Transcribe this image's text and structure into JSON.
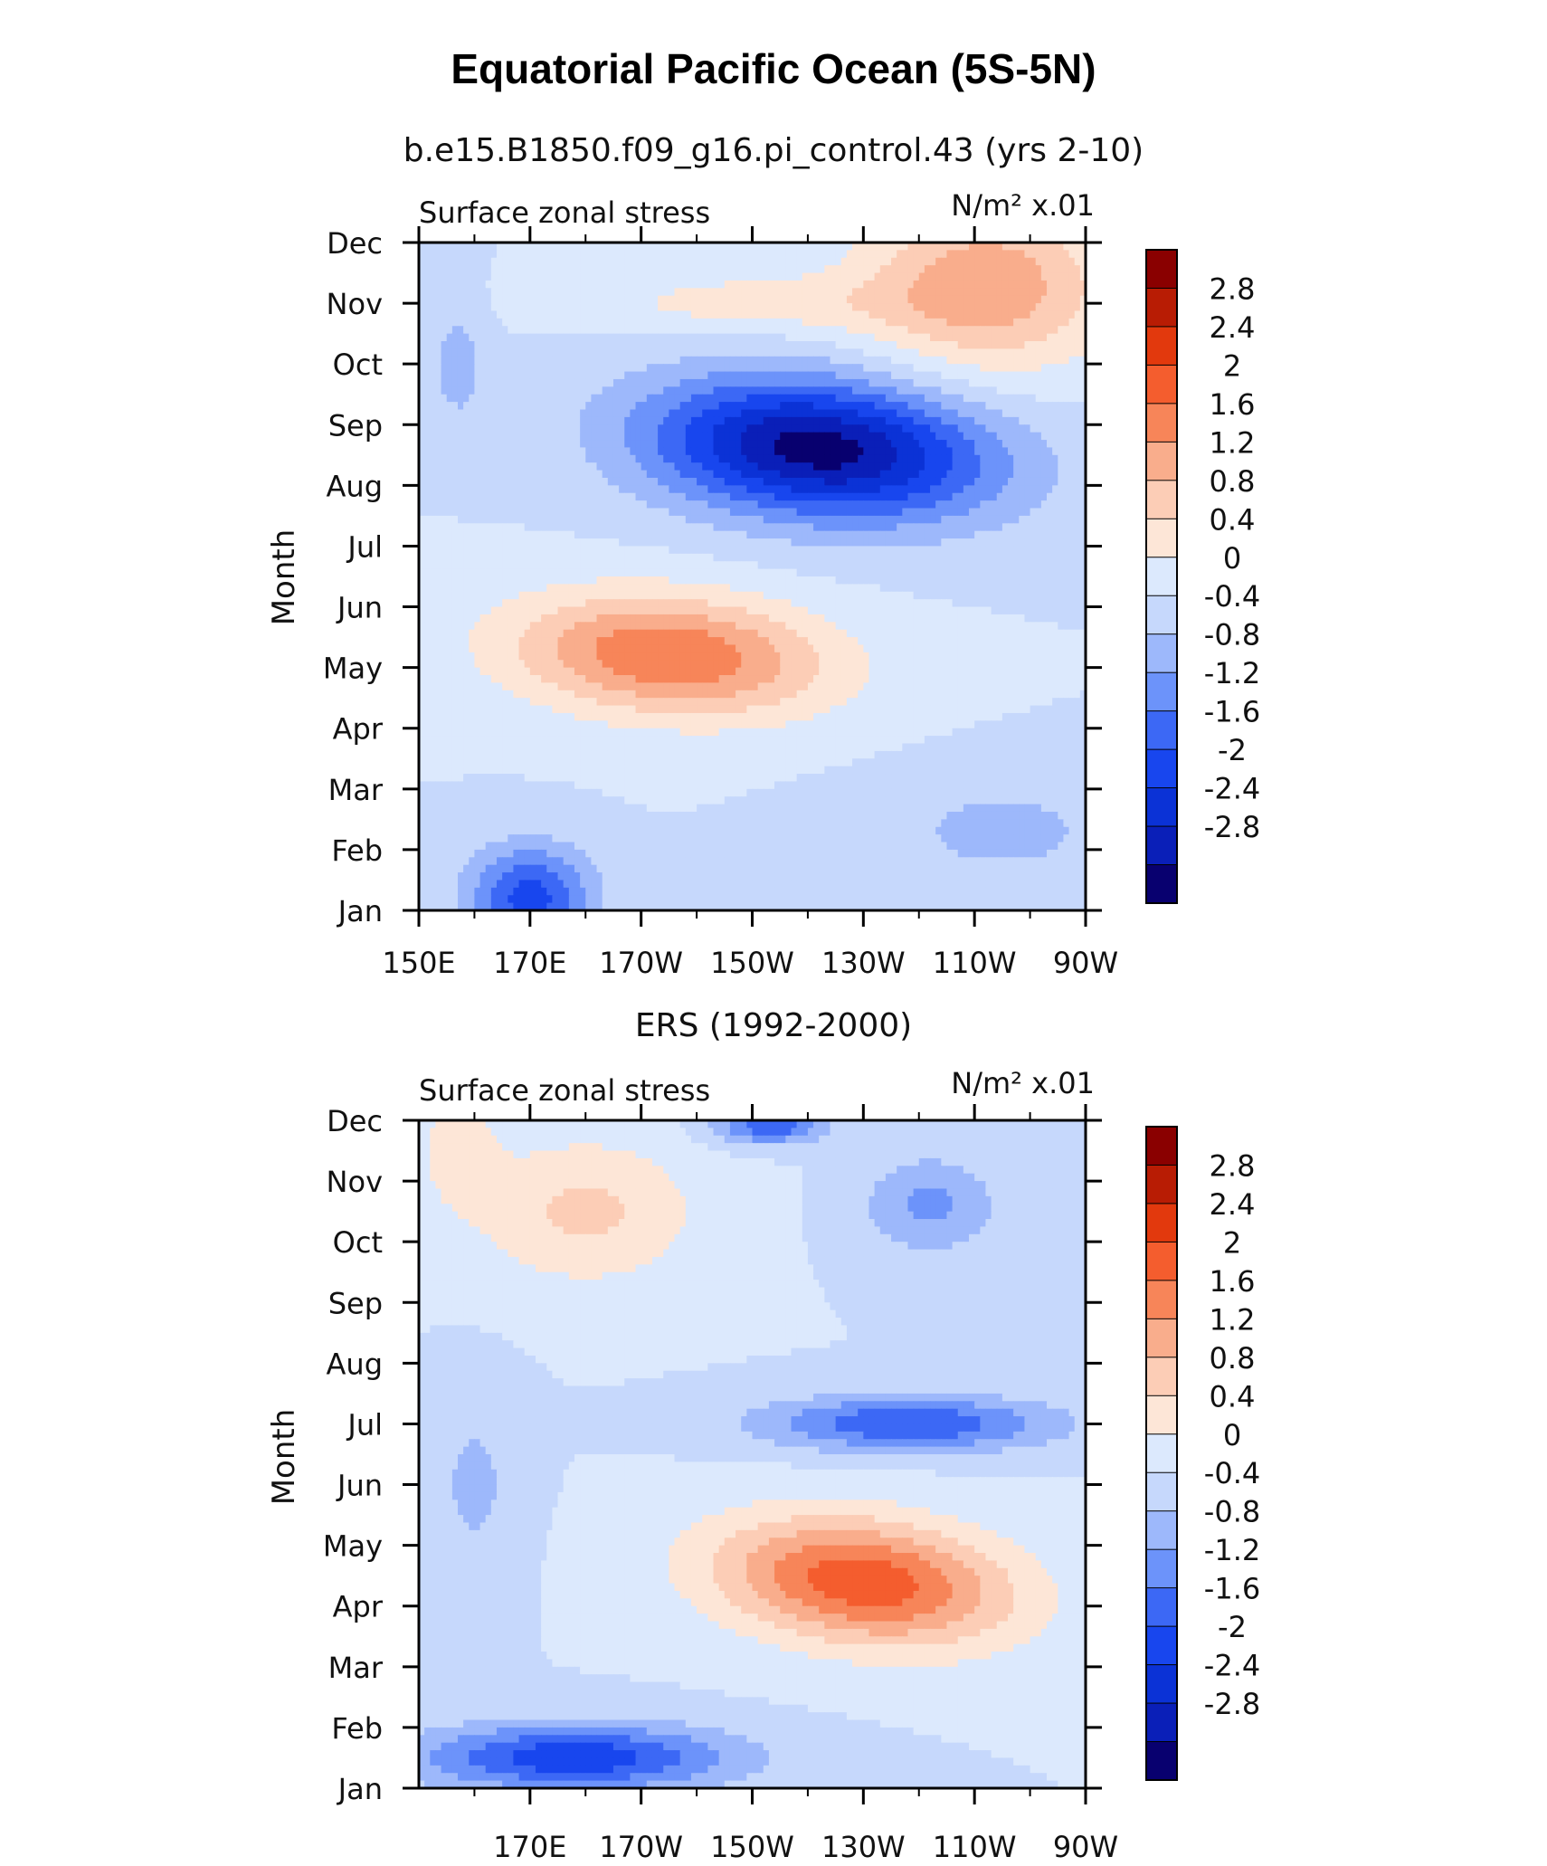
{
  "figure": {
    "title": "Equatorial Pacific Ocean (5S-5N)"
  },
  "colors": {
    "levels_fill": [
      "#08006f",
      "#0a1fb8",
      "#0b32d6",
      "#1846ee",
      "#3c68f5",
      "#6c93fa",
      "#9db8fb",
      "#c6d8fc",
      "#dce9fd",
      "#fde6d7",
      "#fccdb6",
      "#f9ad8c",
      "#f78559",
      "#f45d2e",
      "#e2390d",
      "#b81c04",
      "#8a0000"
    ],
    "axis": "#000000",
    "background": "#ffffff"
  },
  "chart_data": [
    {
      "type": "heatmap",
      "title": "b.e15.B1850.f09_g16.pi_control.43 (yrs 2-10)",
      "left_label": "Surface zonal stress",
      "right_label": "N/m² x.01",
      "ylabel": "Month",
      "xlabel": "",
      "x_range": [
        150,
        270
      ],
      "x_ticks": [
        150,
        170,
        190,
        210,
        230,
        250,
        270
      ],
      "x_tick_labels": [
        "150E",
        "170E",
        "170W",
        "150W",
        "130W",
        "110W",
        "90W"
      ],
      "y_tick_labels": [
        "Jan",
        "Feb",
        "Mar",
        "Apr",
        "May",
        "Jun",
        "Jul",
        "Aug",
        "Sep",
        "Oct",
        "Nov",
        "Dec"
      ],
      "colorbar_labels": [
        "2.8",
        "2.4",
        "2",
        "1.6",
        "1.2",
        "0.8",
        "0.4",
        "0",
        "-0.4",
        "-0.8",
        "-1.2",
        "-1.6",
        "-2",
        "-2.4",
        "-2.8"
      ],
      "contour_levels": [
        -2.8,
        -2.4,
        -2,
        -1.6,
        -1.2,
        -0.8,
        -0.4,
        0,
        0.4,
        0.8,
        1.2,
        1.6,
        2,
        2.4,
        2.8
      ],
      "features": [
        {
          "lon": 222,
          "month": 7.6,
          "value": -3.0,
          "sx": 30,
          "sy": 1.15,
          "tilt": -0.5
        },
        {
          "lon": 170,
          "month": 0.2,
          "value": -1.8,
          "sx": 11,
          "sy": 0.85,
          "tilt": 0
        },
        {
          "lon": 195,
          "month": 4.2,
          "value": 2.0,
          "sx": 28,
          "sy": 1.0,
          "tilt": -0.45
        },
        {
          "lon": 252,
          "month": 10.3,
          "value": 1.5,
          "sx": 22,
          "sy": 1.4,
          "tilt": 0
        },
        {
          "lon": 210,
          "month": 10.0,
          "value": 0.6,
          "sx": 30,
          "sy": 0.5,
          "tilt": 0
        },
        {
          "lon": 157,
          "month": 9.0,
          "value": -0.6,
          "sx": 5,
          "sy": 1.0,
          "tilt": 0
        },
        {
          "lon": 255,
          "month": 1.3,
          "value": -0.5,
          "sx": 25,
          "sy": 1.0,
          "tilt": 0
        }
      ]
    },
    {
      "type": "heatmap",
      "title": "ERS (1992-2000)",
      "left_label": "Surface zonal stress",
      "right_label": "N/m² x.01",
      "ylabel": "Month",
      "xlabel": "",
      "x_range": [
        150,
        270
      ],
      "x_ticks": [
        170,
        190,
        210,
        230,
        250,
        270
      ],
      "x_tick_labels": [
        "170E",
        "170W",
        "150W",
        "130W",
        "110W",
        "90W"
      ],
      "y_tick_labels": [
        "Jan",
        "Feb",
        "Mar",
        "Apr",
        "May",
        "Jun",
        "Jul",
        "Aug",
        "Sep",
        "Oct",
        "Nov",
        "Dec"
      ],
      "colorbar_labels": [
        "2.8",
        "2.4",
        "2",
        "1.6",
        "1.2",
        "0.8",
        "0.4",
        "0",
        "-0.4",
        "-0.8",
        "-1.2",
        "-1.6",
        "-2",
        "-2.4",
        "-2.8"
      ],
      "contour_levels": [
        -2.8,
        -2.4,
        -2,
        -1.6,
        -1.2,
        -0.8,
        -0.4,
        0,
        0.4,
        0.8,
        1.2,
        1.6,
        2,
        2.4,
        2.8
      ],
      "features": [
        {
          "lon": 230,
          "month": 3.4,
          "value": 2.3,
          "sx": 26,
          "sy": 1.05,
          "tilt": -0.55
        },
        {
          "lon": 178,
          "month": 0.5,
          "value": -1.9,
          "sx": 28,
          "sy": 0.55,
          "tilt": 0
        },
        {
          "lon": 238,
          "month": 6.0,
          "value": -1.6,
          "sx": 26,
          "sy": 0.45,
          "tilt": 0
        },
        {
          "lon": 213,
          "month": 10.9,
          "value": -1.5,
          "sx": 10,
          "sy": 0.3,
          "tilt": 0
        },
        {
          "lon": 242,
          "month": 9.6,
          "value": -0.9,
          "sx": 12,
          "sy": 0.8,
          "tilt": 0
        },
        {
          "lon": 180,
          "month": 9.5,
          "value": 0.9,
          "sx": 20,
          "sy": 1.2,
          "tilt": 0
        },
        {
          "lon": 157,
          "month": 10.6,
          "value": 0.6,
          "sx": 7,
          "sy": 1.0,
          "tilt": 0
        },
        {
          "lon": 160,
          "month": 5.0,
          "value": -0.5,
          "sx": 8,
          "sy": 1.5,
          "tilt": 0
        }
      ]
    }
  ]
}
